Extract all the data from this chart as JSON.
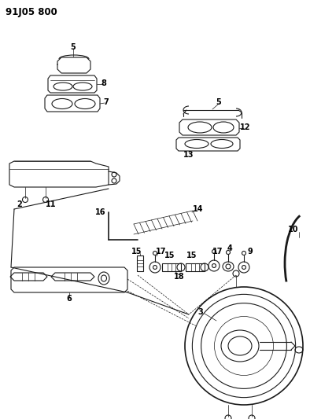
{
  "title": "91J05 800",
  "bg_color": "#ffffff",
  "line_color": "#1a1a1a",
  "title_fontsize": 8.5,
  "label_fontsize": 7,
  "fig_width": 3.94,
  "fig_height": 5.33,
  "dpi": 100
}
